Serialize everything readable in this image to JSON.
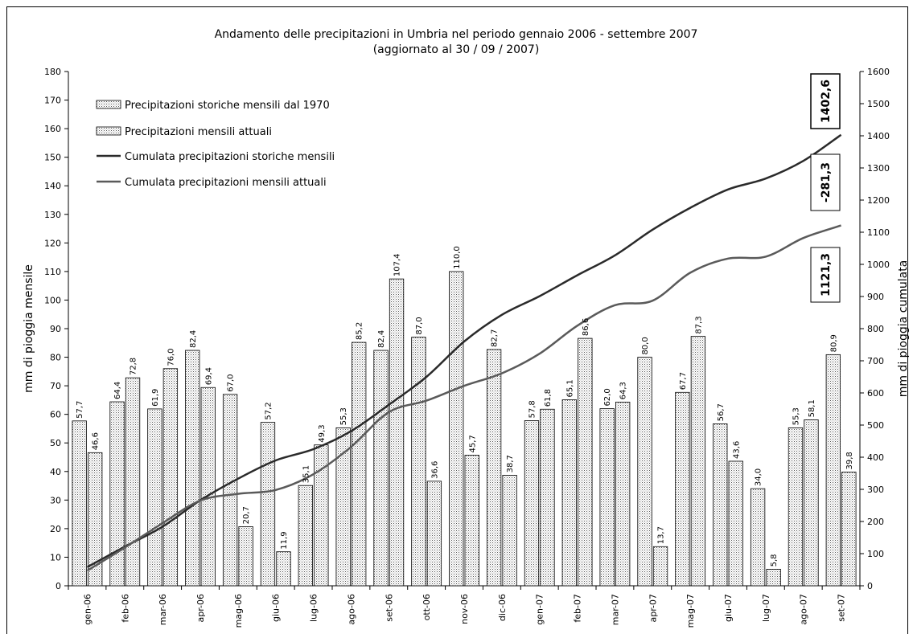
{
  "chart_data": {
    "type": "bar",
    "title": "Andamento delle precipitazioni in Umbria nel periodo gennaio 2006 - settembre 2007",
    "subtitle": "(aggiornato al 30 / 09 / 2007)",
    "ylabel": "mm di pioggia mensile",
    "y2label": "mm di pioggia cumulata",
    "ylim": [
      0,
      180
    ],
    "y2lim": [
      0,
      1600
    ],
    "yticks": [
      "0",
      "10",
      "20",
      "30",
      "40",
      "50",
      "60",
      "70",
      "80",
      "90",
      "100",
      "110",
      "120",
      "130",
      "140",
      "150",
      "160",
      "170",
      "180"
    ],
    "y2ticks": [
      "0",
      "100",
      "200",
      "300",
      "400",
      "500",
      "600",
      "700",
      "800",
      "900",
      "1000",
      "1100",
      "1200",
      "1300",
      "1400",
      "1500",
      "1600"
    ],
    "grid": false,
    "legend_position": "top-left",
    "categories": [
      "gen-06",
      "feb-06",
      "mar-06",
      "apr-06",
      "mag-06",
      "giu-06",
      "lug-06",
      "ago-06",
      "set-06",
      "ott-06",
      "nov-06",
      "dic-06",
      "gen-07",
      "feb-07",
      "mar-07",
      "apr-07",
      "mag-07",
      "giu-07",
      "lug-07",
      "ago-07",
      "set-07"
    ],
    "bar_series": [
      {
        "name": "Precipitazioni storiche mensili dal 1970",
        "axis": "left",
        "values": [
          57.7,
          64.4,
          61.9,
          82.4,
          67.0,
          57.2,
          35.1,
          55.3,
          82.4,
          87.0,
          110.0,
          82.7,
          57.8,
          65.1,
          62.0,
          80.0,
          67.7,
          56.7,
          34.0,
          55.3,
          80.9
        ],
        "labels": [
          "57,7",
          "64,4",
          "61,9",
          "82,4",
          "67,0",
          "57,2",
          "35,1",
          "55,3",
          "82,4",
          "87,0",
          "110,0",
          "82,7",
          "57,8",
          "65,1",
          "62,0",
          "80,0",
          "67,7",
          "56,7",
          "34,0",
          "55,3",
          "80,9"
        ]
      },
      {
        "name": "Precipitazioni mensili attuali",
        "axis": "left",
        "values": [
          46.6,
          72.8,
          76.0,
          69.4,
          20.7,
          11.9,
          49.3,
          85.2,
          107.4,
          36.6,
          45.7,
          38.7,
          61.8,
          86.6,
          64.3,
          13.7,
          87.3,
          43.6,
          5.8,
          58.1,
          39.8
        ],
        "labels": [
          "46,6",
          "72,8",
          "76,0",
          "69,4",
          "20,7",
          "11,9",
          "49,3",
          "85,2",
          "107,4",
          "36,6",
          "45,7",
          "38,7",
          "61,8",
          "86,6",
          "64,3",
          "13,7",
          "87,3",
          "43,6",
          "5,8",
          "58,1",
          "39,8"
        ]
      }
    ],
    "line_series": [
      {
        "name": "Cumulata precipitazioni storiche mensili",
        "axis": "right",
        "color": "#2a2a2a",
        "values": [
          58,
          122,
          184,
          266,
          333,
          390,
          425,
          481,
          563,
          650,
          760,
          843,
          901,
          966,
          1028,
          1108,
          1176,
          1233,
          1267,
          1322,
          1403
        ]
      },
      {
        "name": "Cumulata precipitazioni mensili attuali",
        "axis": "right",
        "color": "#5a5a5a",
        "values": [
          47,
          119,
          195,
          265,
          286,
          298,
          347,
          432,
          540,
          576,
          622,
          661,
          722,
          809,
          873,
          887,
          974,
          1018,
          1024,
          1082,
          1121
        ]
      }
    ],
    "annotations": [
      {
        "name": "total-historic",
        "text": "1402,6"
      },
      {
        "name": "difference",
        "text": "-281,3"
      },
      {
        "name": "total-current",
        "text": "1121,3"
      }
    ]
  }
}
